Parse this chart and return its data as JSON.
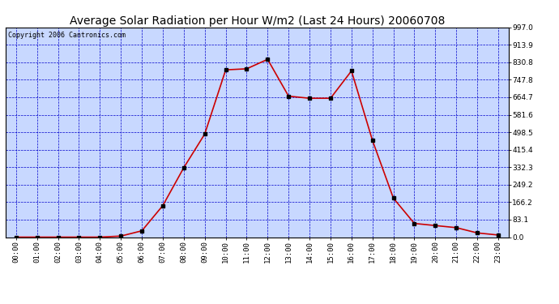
{
  "title": "Average Solar Radiation per Hour W/m2 (Last 24 Hours) 20060708",
  "copyright": "Copyright 2006 Cantronics.com",
  "hours": [
    "00:00",
    "01:00",
    "02:00",
    "03:00",
    "04:00",
    "05:00",
    "06:00",
    "07:00",
    "08:00",
    "09:00",
    "10:00",
    "11:00",
    "12:00",
    "13:00",
    "14:00",
    "15:00",
    "16:00",
    "17:00",
    "18:00",
    "19:00",
    "20:00",
    "21:00",
    "22:00",
    "23:00"
  ],
  "values": [
    0,
    0,
    0,
    0,
    0,
    5,
    30,
    150,
    330,
    490,
    795,
    800,
    845,
    670,
    660,
    660,
    790,
    460,
    185,
    65,
    55,
    45,
    20,
    10
  ],
  "line_color": "#cc0000",
  "marker_color": "#000000",
  "bg_color": "#c8d8ff",
  "grid_color": "#0000cc",
  "yticks": [
    0.0,
    83.1,
    166.2,
    249.2,
    332.3,
    415.4,
    498.5,
    581.6,
    664.7,
    747.8,
    830.8,
    913.9,
    997.0
  ],
  "ymax": 997.0,
  "ymin": 0.0,
  "title_fontsize": 10,
  "axis_fontsize": 6.5,
  "copyright_fontsize": 6
}
